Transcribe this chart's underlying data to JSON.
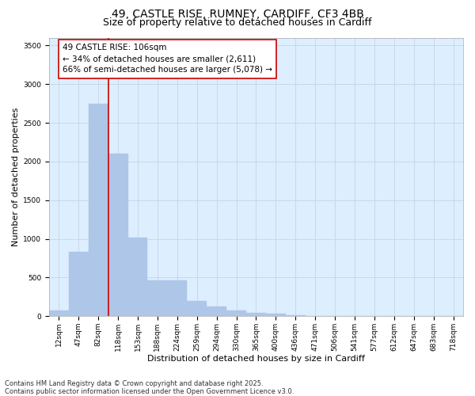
{
  "title_line1": "49, CASTLE RISE, RUMNEY, CARDIFF, CF3 4BB",
  "title_line2": "Size of property relative to detached houses in Cardiff",
  "xlabel": "Distribution of detached houses by size in Cardiff",
  "ylabel": "Number of detached properties",
  "categories": [
    "12sqm",
    "47sqm",
    "82sqm",
    "118sqm",
    "153sqm",
    "188sqm",
    "224sqm",
    "259sqm",
    "294sqm",
    "330sqm",
    "365sqm",
    "400sqm",
    "436sqm",
    "471sqm",
    "506sqm",
    "541sqm",
    "577sqm",
    "612sqm",
    "647sqm",
    "683sqm",
    "718sqm"
  ],
  "values": [
    80,
    830,
    2750,
    2100,
    1020,
    460,
    460,
    200,
    130,
    80,
    45,
    30,
    15,
    8,
    4,
    2,
    1,
    1,
    0,
    0,
    0
  ],
  "bar_color": "#aec6e8",
  "bar_edgecolor": "#aec6e8",
  "vline_x": 2.5,
  "vline_color": "#cc0000",
  "annotation_line1": "49 CASTLE RISE: 106sqm",
  "annotation_line2": "← 34% of detached houses are smaller (2,611)",
  "annotation_line3": "66% of semi-detached houses are larger (5,078) →",
  "box_edgecolor": "#cc0000",
  "ylim": [
    0,
    3600
  ],
  "yticks": [
    0,
    500,
    1000,
    1500,
    2000,
    2500,
    3000,
    3500
  ],
  "grid_color": "#c8d8e8",
  "bg_color": "#ddeeff",
  "footer_line1": "Contains HM Land Registry data © Crown copyright and database right 2025.",
  "footer_line2": "Contains public sector information licensed under the Open Government Licence v3.0.",
  "title_fontsize": 10,
  "subtitle_fontsize": 9,
  "axis_label_fontsize": 8,
  "tick_fontsize": 6.5,
  "annotation_fontsize": 7.5,
  "footer_fontsize": 6
}
